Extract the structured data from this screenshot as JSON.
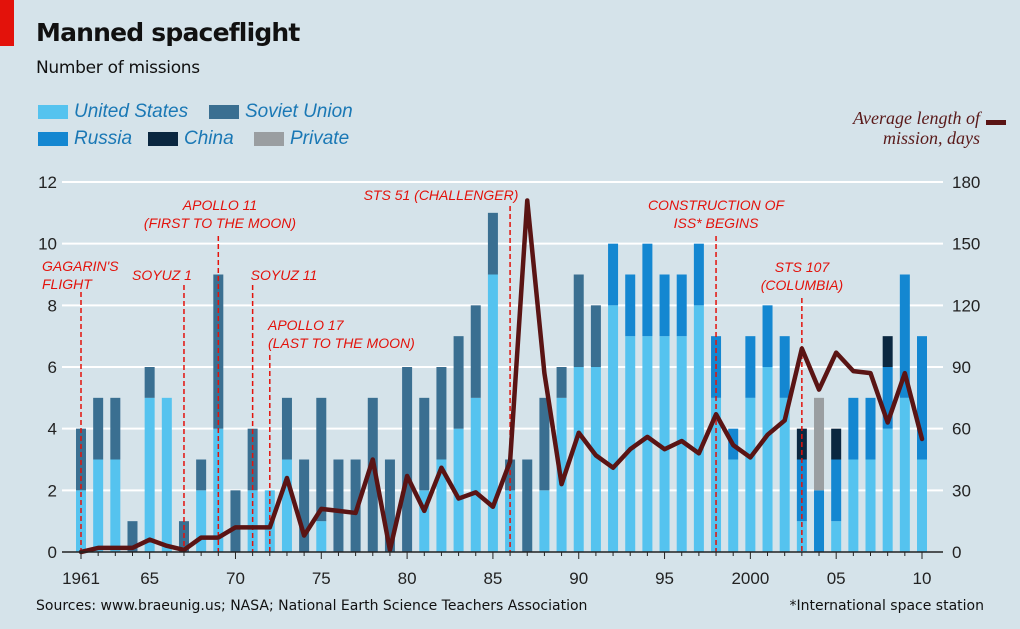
{
  "title": "Manned spaceflight",
  "subtitle": "Number of missions",
  "legend": [
    {
      "label": "United States",
      "color": "#55c3ef"
    },
    {
      "label": "Soviet Union",
      "color": "#3a6f91"
    },
    {
      "label": "Russia",
      "color": "#1487d1"
    },
    {
      "label": "China",
      "color": "#0a2740"
    },
    {
      "label": "Private",
      "color": "#9a9ea1"
    }
  ],
  "line_legend": {
    "line1": "Average length of",
    "line2": "mission, days",
    "color": "#5a1414"
  },
  "source": "Sources: www.braeunig.us; NASA; National Earth Science Teachers Association",
  "footnote": "*International space station",
  "chart_data": {
    "type": "bar",
    "stacked": true,
    "x": [
      1961,
      1962,
      1963,
      1964,
      1965,
      1966,
      1967,
      1968,
      1969,
      1970,
      1971,
      1972,
      1973,
      1974,
      1975,
      1976,
      1977,
      1978,
      1979,
      1980,
      1981,
      1982,
      1983,
      1984,
      1985,
      1986,
      1987,
      1988,
      1989,
      1990,
      1991,
      1992,
      1993,
      1994,
      1995,
      1996,
      1997,
      1998,
      1999,
      2000,
      2001,
      2002,
      2003,
      2004,
      2005,
      2006,
      2007,
      2008,
      2009,
      2010
    ],
    "x_tick_labels": [
      {
        "x": 1961,
        "label": "1961"
      },
      {
        "x": 1965,
        "label": "65"
      },
      {
        "x": 1970,
        "label": "70"
      },
      {
        "x": 1975,
        "label": "75"
      },
      {
        "x": 1980,
        "label": "80"
      },
      {
        "x": 1985,
        "label": "85"
      },
      {
        "x": 1990,
        "label": "90"
      },
      {
        "x": 1995,
        "label": "95"
      },
      {
        "x": 2000,
        "label": "2000"
      },
      {
        "x": 2005,
        "label": "05"
      },
      {
        "x": 2010,
        "label": "10"
      }
    ],
    "y_left": {
      "min": 0,
      "max": 12,
      "ticks": [
        0,
        2,
        4,
        6,
        8,
        10,
        12
      ]
    },
    "y_right": {
      "min": 0,
      "max": 180,
      "ticks": [
        0,
        30,
        60,
        90,
        120,
        150,
        180
      ]
    },
    "series": [
      {
        "name": "United States",
        "color": "#55c3ef",
        "values": [
          2,
          3,
          3,
          0,
          5,
          5,
          0,
          2,
          4,
          0,
          2,
          2,
          3,
          0,
          1,
          0,
          0,
          0,
          0,
          0,
          2,
          3,
          4,
          5,
          9,
          2,
          0,
          2,
          5,
          6,
          6,
          8,
          7,
          7,
          7,
          7,
          8,
          5,
          3,
          5,
          6,
          5,
          1,
          0,
          1,
          3,
          3,
          4,
          5,
          3
        ]
      },
      {
        "name": "Soviet Union",
        "color": "#3a6f91",
        "values": [
          2,
          2,
          2,
          1,
          1,
          0,
          1,
          1,
          5,
          2,
          2,
          0,
          2,
          3,
          4,
          3,
          3,
          5,
          3,
          6,
          3,
          3,
          3,
          3,
          2,
          1,
          3,
          3,
          1,
          3,
          2,
          0,
          0,
          0,
          0,
          0,
          0,
          0,
          0,
          0,
          0,
          0,
          0,
          0,
          0,
          0,
          0,
          0,
          0,
          0
        ]
      },
      {
        "name": "Russia",
        "color": "#1487d1",
        "values": [
          0,
          0,
          0,
          0,
          0,
          0,
          0,
          0,
          0,
          0,
          0,
          0,
          0,
          0,
          0,
          0,
          0,
          0,
          0,
          0,
          0,
          0,
          0,
          0,
          0,
          0,
          0,
          0,
          0,
          0,
          0,
          2,
          2,
          3,
          2,
          2,
          2,
          2,
          1,
          2,
          2,
          2,
          2,
          2,
          2,
          2,
          2,
          2,
          4,
          4
        ]
      },
      {
        "name": "China",
        "color": "#0a2740",
        "values": [
          0,
          0,
          0,
          0,
          0,
          0,
          0,
          0,
          0,
          0,
          0,
          0,
          0,
          0,
          0,
          0,
          0,
          0,
          0,
          0,
          0,
          0,
          0,
          0,
          0,
          0,
          0,
          0,
          0,
          0,
          0,
          0,
          0,
          0,
          0,
          0,
          0,
          0,
          0,
          0,
          0,
          0,
          1,
          0,
          1,
          0,
          0,
          1,
          0,
          0
        ]
      },
      {
        "name": "Private",
        "color": "#9a9ea1",
        "values": [
          0,
          0,
          0,
          0,
          0,
          0,
          0,
          0,
          0,
          0,
          0,
          0,
          0,
          0,
          0,
          0,
          0,
          0,
          0,
          0,
          0,
          0,
          0,
          0,
          0,
          0,
          0,
          0,
          0,
          0,
          0,
          0,
          0,
          0,
          0,
          0,
          0,
          0,
          0,
          0,
          0,
          0,
          0,
          3,
          0,
          0,
          0,
          0,
          0,
          0
        ]
      }
    ],
    "line": {
      "name": "Average length of mission, days",
      "axis": "right",
      "color": "#5a1414",
      "values": [
        0,
        2,
        2,
        2,
        6,
        3,
        1,
        7,
        7,
        12,
        12,
        12,
        36,
        8,
        21,
        20,
        19,
        45,
        1,
        37,
        20,
        41,
        26,
        29,
        22,
        44,
        171,
        87,
        33,
        58,
        47,
        41,
        50,
        56,
        50,
        54,
        48,
        67,
        52,
        46,
        57,
        64,
        99,
        79,
        97,
        88,
        87,
        63,
        87,
        55
      ]
    },
    "annotations": [
      {
        "x": 1961,
        "lines": [
          "GAGARIN'S",
          "FLIGHT"
        ]
      },
      {
        "x": 1967,
        "lines": [
          "SOYUZ 1"
        ]
      },
      {
        "x": 1969,
        "lines": [
          "APOLLO 11",
          "(FIRST TO THE MOON)"
        ]
      },
      {
        "x": 1971,
        "lines": [
          "SOYUZ 11"
        ]
      },
      {
        "x": 1972,
        "lines": [
          "APOLLO 17",
          "(LAST TO THE MOON)"
        ]
      },
      {
        "x": 1986,
        "lines": [
          "STS 51 (CHALLENGER)"
        ]
      },
      {
        "x": 1998,
        "lines": [
          "CONSTRUCTION OF",
          "ISS* BEGINS"
        ]
      },
      {
        "x": 2003,
        "lines": [
          "STS 107",
          "(COLUMBIA)"
        ]
      }
    ],
    "grid": true
  }
}
